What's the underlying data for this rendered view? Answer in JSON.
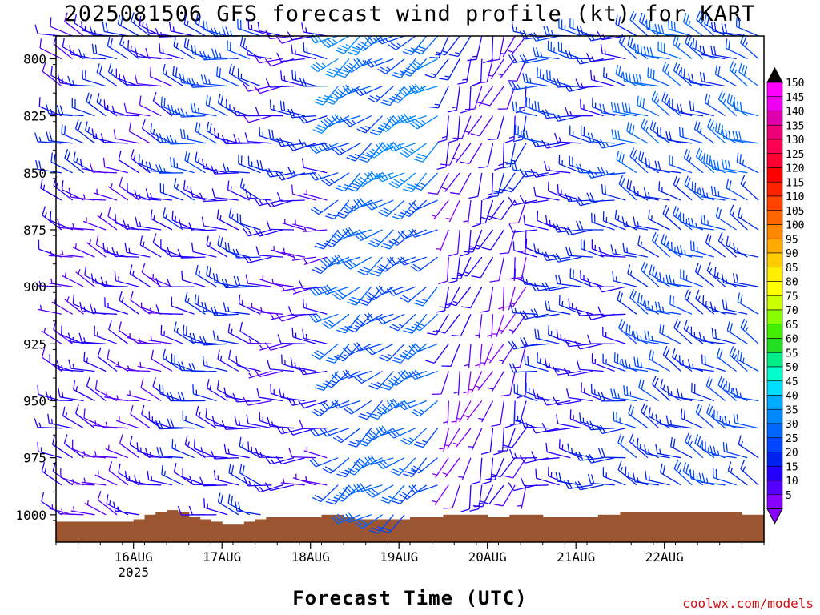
{
  "header": {
    "title": "2025081506 GFS forecast wind profile (kt) for KART"
  },
  "footer": {
    "xlabel": "Forecast Time (UTC)",
    "watermark": "coolwx.com/models"
  },
  "colors": {
    "ground": "#9b5530",
    "frame": "#000000",
    "barb_purple": "#8a2be2",
    "barb_blue": "#1e3cff"
  },
  "chart_data": {
    "type": "wind-barb profile",
    "title": "2025081506 GFS forecast wind profile (kt) for KART",
    "xlabel": "Forecast Time (UTC)",
    "ylabel": "",
    "x_ticks": [
      "16AUG",
      "17AUG",
      "18AUG",
      "19AUG",
      "20AUG",
      "21AUG",
      "22AUG"
    ],
    "x_year_label": "2025",
    "y_ticks": [
      800,
      825,
      850,
      875,
      900,
      925,
      950,
      975,
      1000
    ],
    "y_range_hpa": [
      1012,
      790
    ],
    "levels_hpa": [
      790,
      800,
      812,
      825,
      837,
      850,
      862,
      875,
      887,
      900,
      912,
      925,
      937,
      950,
      962,
      975,
      987,
      1000
    ],
    "time_range_hours": [
      -21,
      171
    ],
    "time_step_hours": 3,
    "regimes": [
      {
        "from_h": -21,
        "to_h": 12,
        "dir_deg": 290,
        "speed_kt": 10,
        "note": "WNW light, purple"
      },
      {
        "from_h": 12,
        "to_h": 36,
        "dir_deg": 285,
        "speed_kt": 15,
        "note": "WNW moderate"
      },
      {
        "from_h": 36,
        "to_h": 54,
        "dir_deg": 270,
        "speed_kt": 10,
        "note": "W backing"
      },
      {
        "from_h": 54,
        "to_h": 84,
        "dir_deg": 235,
        "speed_kt": 25,
        "note": "SW, blue shades"
      },
      {
        "from_h": 84,
        "to_h": 108,
        "dir_deg": 200,
        "speed_kt": 8,
        "note": "S-SSW light"
      },
      {
        "from_h": 108,
        "to_h": 135,
        "dir_deg": 275,
        "speed_kt": 15,
        "note": "W"
      },
      {
        "from_h": 135,
        "to_h": 171,
        "dir_deg": 295,
        "speed_kt": 20,
        "note": "WNW moderate"
      }
    ],
    "ground_pressure_hpa": [
      1003,
      1003,
      1003,
      1003,
      1003,
      1003,
      1003,
      1002,
      1000,
      999,
      998,
      999,
      1001,
      1002,
      1003,
      1004,
      1004,
      1003,
      1002,
      1001,
      1001,
      1001,
      1001,
      1001,
      1000,
      1000,
      1001,
      1002,
      1002,
      1002,
      1002,
      1002,
      1001,
      1001,
      1001,
      1000,
      1000,
      1000,
      1000,
      1001,
      1001,
      1000,
      1000,
      1000,
      1001,
      1001,
      1001,
      1001,
      1001,
      1000,
      1000,
      999,
      999,
      999,
      999,
      999,
      999,
      999,
      999,
      999,
      999,
      999,
      1000,
      1000
    ],
    "colorbar": {
      "labels": [
        150,
        145,
        140,
        135,
        130,
        125,
        120,
        115,
        110,
        105,
        100,
        95,
        90,
        85,
        80,
        75,
        70,
        65,
        60,
        55,
        50,
        45,
        40,
        35,
        30,
        25,
        20,
        15,
        10,
        5
      ],
      "colors": [
        "#ff00ff",
        "#ee00ee",
        "#dd00aa",
        "#ee0077",
        "#ff0055",
        "#ff0033",
        "#ff0000",
        "#ff2200",
        "#ff4400",
        "#ff6600",
        "#ff8800",
        "#ffaa00",
        "#ffcc00",
        "#ffee00",
        "#ffff00",
        "#ccff00",
        "#88ff00",
        "#44ee00",
        "#22dd22",
        "#00ee88",
        "#00ffcc",
        "#00ddff",
        "#00aaff",
        "#0088ff",
        "#0066ff",
        "#0044ff",
        "#0022ee",
        "#2200ff",
        "#5500ff",
        "#8800ff"
      ]
    }
  }
}
